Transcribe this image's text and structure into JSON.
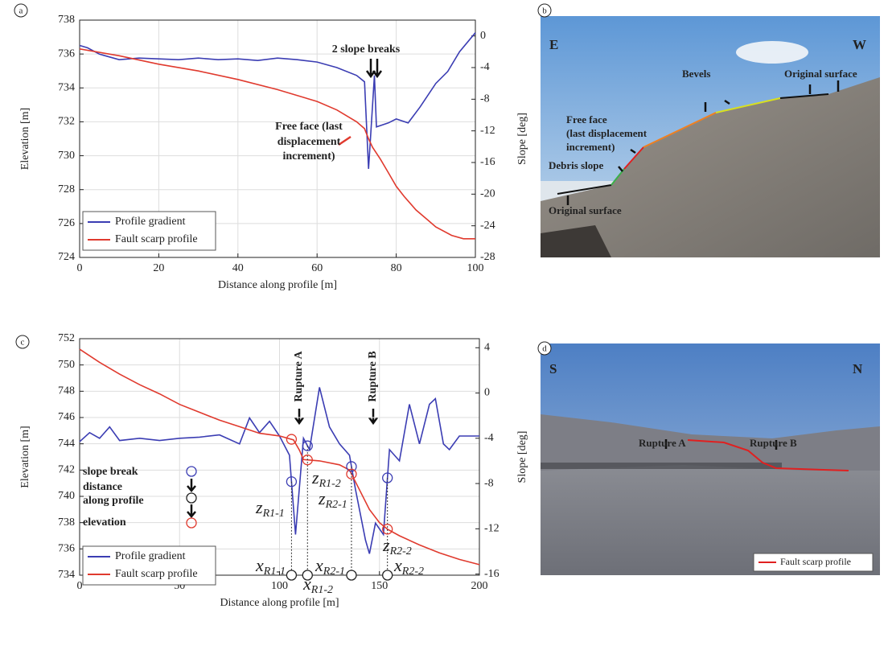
{
  "chart_data": [
    {
      "type": "line",
      "panel_label": "a",
      "xlabel": "Distance along profile [m]",
      "ylabel": "Elevation [m]",
      "y2label": "Slope [deg]",
      "xlim": [
        0,
        100
      ],
      "xticks": [
        0,
        20,
        40,
        60,
        80,
        100
      ],
      "ylim": [
        724,
        738
      ],
      "yticks": [
        724,
        726,
        728,
        730,
        732,
        734,
        736,
        738
      ],
      "y2lim": [
        -28,
        2
      ],
      "y2ticks": [
        0,
        -4,
        -8,
        -12,
        -16,
        -20,
        -24,
        -28
      ],
      "grid": true,
      "legend": "lower left",
      "series": [
        {
          "name": "Profile gradient",
          "color": "#3b3db3",
          "axis": "y2",
          "x": [
            0,
            2,
            5,
            10,
            15,
            20,
            25,
            30,
            35,
            40,
            45,
            50,
            55,
            60,
            65,
            70,
            72,
            73,
            74.5,
            75,
            78,
            80,
            83,
            86,
            90,
            93,
            96,
            100
          ],
          "values": [
            -1.2,
            -1.5,
            -2.3,
            -3.0,
            -2.8,
            -2.9,
            -3.0,
            -2.8,
            -3.0,
            -2.9,
            -3.1,
            -2.8,
            -3.0,
            -3.3,
            -4.0,
            -5.0,
            -5.8,
            -16.8,
            -5.0,
            -11.5,
            -11.0,
            -10.5,
            -11.0,
            -9.0,
            -6.0,
            -4.5,
            -2.0,
            0.4
          ]
        },
        {
          "name": "Fault scarp profile",
          "color": "#e03a2e",
          "x": [
            0,
            10,
            20,
            30,
            40,
            50,
            60,
            65,
            70,
            72,
            73,
            74,
            76,
            78,
            80,
            82,
            85,
            88,
            90,
            94,
            97,
            100
          ],
          "values": [
            736.3,
            735.9,
            735.4,
            735.0,
            734.5,
            733.9,
            733.2,
            732.7,
            732.0,
            731.6,
            731.0,
            730.5,
            729.8,
            729.0,
            728.2,
            727.6,
            726.8,
            726.2,
            725.8,
            725.3,
            725.1,
            725.1
          ]
        }
      ],
      "annotations": [
        {
          "lines": [
            "2 slope breaks"
          ],
          "color": "#111111"
        },
        {
          "lines": [
            "Free face (last",
            "displacement",
            "increment)"
          ],
          "color": "#e03a2e"
        }
      ]
    },
    {
      "type": "line",
      "panel_label": "c",
      "xlabel": "Distance along profile [m]",
      "ylabel": "Elevation [m]",
      "y2label": "Slope [deg]",
      "xlim": [
        0,
        200
      ],
      "xticks": [
        0,
        50,
        100,
        150,
        200
      ],
      "ylim": [
        734,
        752
      ],
      "yticks": [
        734,
        736,
        738,
        740,
        742,
        744,
        746,
        748,
        750,
        752
      ],
      "y2lim": [
        -16.1,
        4.8
      ],
      "y2ticks": [
        4,
        0,
        -4,
        -8,
        -12,
        -16
      ],
      "grid": true,
      "legend": "lower left",
      "series": [
        {
          "name": "Profile gradient",
          "color": "#3b3db3",
          "axis": "y2",
          "x": [
            0,
            5,
            10,
            15,
            20,
            30,
            40,
            50,
            60,
            70,
            80,
            85,
            90,
            95,
            100,
            105,
            108,
            112,
            115,
            120,
            125,
            130,
            135,
            138,
            143,
            145,
            148,
            152,
            155,
            160,
            165,
            170,
            175,
            178,
            182,
            185,
            190,
            200
          ],
          "values": [
            -4.3,
            -3.5,
            -4.0,
            -3.0,
            -4.2,
            -4.0,
            -4.2,
            -4.0,
            -3.9,
            -3.7,
            -4.5,
            -2.2,
            -3.5,
            -2.5,
            -3.8,
            -5.5,
            -12.5,
            -4.0,
            -5.0,
            0.5,
            -3.0,
            -4.5,
            -5.5,
            -8.5,
            -13.0,
            -14.2,
            -11.5,
            -12.5,
            -5.0,
            -6.0,
            -1.0,
            -4.5,
            -1.0,
            -0.5,
            -4.5,
            -5.0,
            -3.8,
            -3.8
          ]
        },
        {
          "name": "Fault scarp profile",
          "color": "#e03a2e",
          "x": [
            0,
            10,
            20,
            30,
            40,
            50,
            60,
            70,
            80,
            90,
            100,
            107,
            110,
            112,
            120,
            130,
            135,
            140,
            145,
            150,
            154,
            160,
            170,
            180,
            190,
            200
          ],
          "values": [
            751.2,
            750.2,
            749.3,
            748.5,
            747.8,
            747.0,
            746.4,
            745.8,
            745.3,
            744.8,
            744.6,
            744.3,
            743.5,
            742.8,
            742.7,
            742.4,
            742.0,
            740.5,
            739.0,
            738.0,
            737.5,
            737.0,
            736.3,
            735.7,
            735.2,
            734.8
          ]
        }
      ],
      "slope_breaks": [
        106,
        114,
        136,
        154
      ],
      "annotations": [
        {
          "lines": [
            "Rupture A"
          ],
          "color": "#111111"
        },
        {
          "lines": [
            "Rupture B"
          ],
          "color": "#111111"
        },
        {
          "lines": [
            "slope break"
          ],
          "color": "#3b3db3"
        },
        {
          "lines": [
            "distance",
            "along profile"
          ],
          "color": "#111111"
        },
        {
          "lines": [
            "elevation"
          ],
          "color": "#e03a2e"
        }
      ],
      "elevation_labels": [
        {
          "symbol": "z",
          "subscript": "R1-1"
        },
        {
          "symbol": "z",
          "subscript": "R1-2"
        },
        {
          "symbol": "z",
          "subscript": "R2-1"
        },
        {
          "symbol": "z",
          "subscript": "R2-2"
        }
      ],
      "distance_labels": [
        {
          "symbol": "x",
          "subscript": "R1-1"
        },
        {
          "symbol": "x",
          "subscript": "R1-2"
        },
        {
          "symbol": "x",
          "subscript": "R2-1"
        },
        {
          "symbol": "x",
          "subscript": "R2-2"
        }
      ]
    }
  ],
  "photos": [
    {
      "panel_label": "b",
      "labels": [
        "E",
        "W",
        "Original surface",
        "Bevels",
        "Free face",
        "(last displacement",
        "increment)",
        "Debris slope",
        "Original surface"
      ]
    },
    {
      "panel_label": "d",
      "labels": [
        "S",
        "N",
        "Rupture A",
        "Rupture B"
      ],
      "legend": "Fault scarp profile"
    }
  ]
}
